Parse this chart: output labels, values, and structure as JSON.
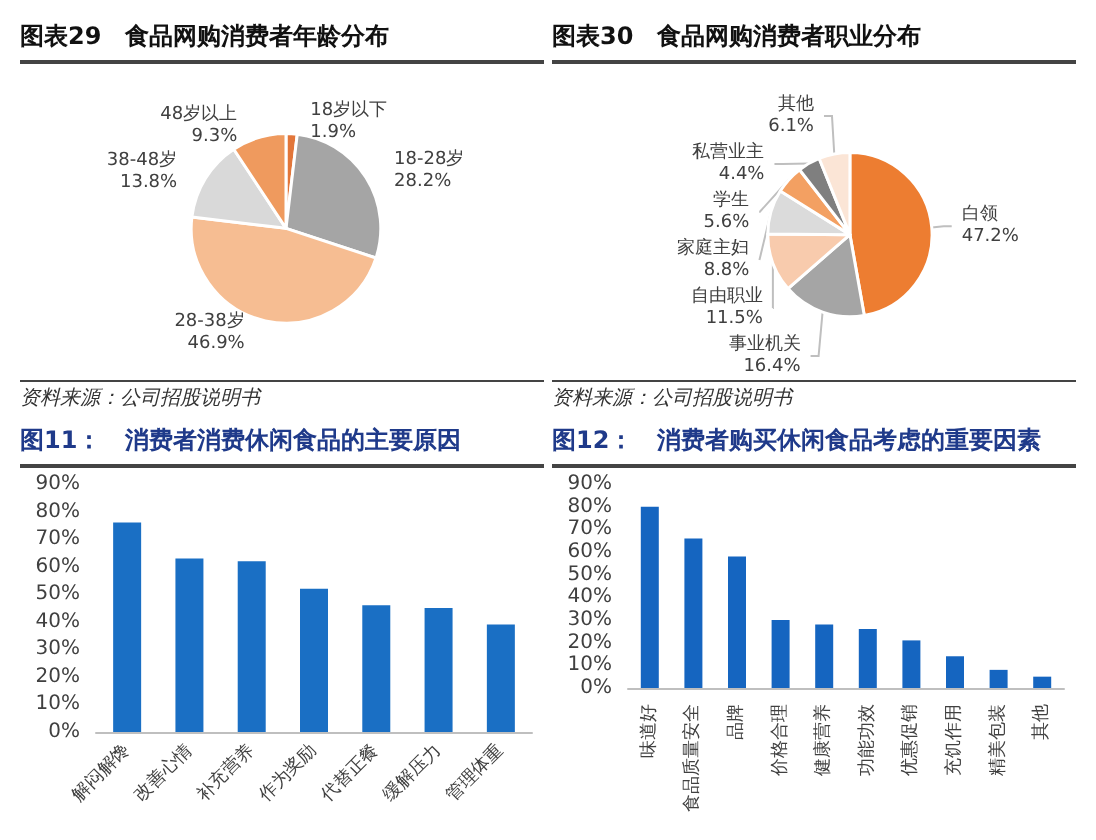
{
  "chart_data": [
    {
      "type": "pie",
      "title": "图表29　食品网购消费者年龄分布",
      "categories": [
        "18岁以下",
        "18-28岁",
        "28-38岁",
        "38-48岁",
        "48岁以上"
      ],
      "values": [
        1.9,
        28.2,
        46.9,
        13.8,
        9.3
      ],
      "value_labels": [
        "1.9%",
        "28.2%",
        "46.9%",
        "13.8%",
        "9.3%"
      ],
      "colors": [
        "#e2763a",
        "#a5a5a5",
        "#f6bd92",
        "#d9d9d9",
        "#ef9a5e"
      ],
      "annotations": [
        "资料来源：公司招股说明书"
      ]
    },
    {
      "type": "pie",
      "title": "图表30　食品网购消费者职业分布",
      "categories": [
        "白领",
        "事业机关",
        "自由职业",
        "家庭主妇",
        "学生",
        "私营业主",
        "其他"
      ],
      "values": [
        47.2,
        16.4,
        11.5,
        8.8,
        5.6,
        4.4,
        6.1
      ],
      "value_labels": [
        "47.2%",
        "16.4%",
        "11.5%",
        "8.8%",
        "5.6%",
        "4.4%",
        "6.1%"
      ],
      "colors": [
        "#ed7d31",
        "#a5a5a5",
        "#f8cbad",
        "#dbdbdb",
        "#f3a062",
        "#7f7f7f",
        "#fbe5d6"
      ],
      "annotations": [
        "资料来源：公司招股说明书"
      ]
    },
    {
      "type": "bar",
      "title": "图11：　消费者消费休闲食品的主要原因",
      "categories": [
        "解闷解馋",
        "改善心情",
        "补充营养",
        "作为奖励",
        "代替正餐",
        "缓解压力",
        "管理体重"
      ],
      "values": [
        76,
        63,
        62,
        52,
        46,
        45,
        39
      ],
      "color": "#1a6fc4",
      "ylim": [
        0,
        90
      ],
      "yticks": [
        {
          "value": 0,
          "label": "0%"
        },
        {
          "value": 10,
          "label": "10%"
        },
        {
          "value": 20,
          "label": "20%"
        },
        {
          "value": 30,
          "label": "30%"
        },
        {
          "value": 40,
          "label": "40%"
        },
        {
          "value": 50,
          "label": "50%"
        },
        {
          "value": 60,
          "label": "60%"
        },
        {
          "value": 70,
          "label": "70%"
        },
        {
          "value": 80,
          "label": "80%"
        },
        {
          "value": 90,
          "label": "90%"
        }
      ]
    },
    {
      "type": "bar",
      "title": "图12：　消费者购买休闲食品考虑的重要因素",
      "categories": [
        "味道好",
        "食品质量安全",
        "品牌",
        "价格合理",
        "健康营养",
        "功能功效",
        "优惠促销",
        "充饥作用",
        "精美包装",
        "其他"
      ],
      "values": [
        80,
        66,
        58,
        30,
        28,
        26,
        21,
        14,
        8,
        5
      ],
      "color": "#1565c0",
      "ylim": [
        0,
        90
      ],
      "yticks": [
        {
          "value": 0,
          "label": "0%"
        },
        {
          "value": 10,
          "label": "10%"
        },
        {
          "value": 20,
          "label": "20%"
        },
        {
          "value": 30,
          "label": "30%"
        },
        {
          "value": 40,
          "label": "40%"
        },
        {
          "value": 50,
          "label": "50%"
        },
        {
          "value": 60,
          "label": "60%"
        },
        {
          "value": 70,
          "label": "70%"
        },
        {
          "value": 80,
          "label": "80%"
        },
        {
          "value": 90,
          "label": "90%"
        }
      ]
    }
  ]
}
